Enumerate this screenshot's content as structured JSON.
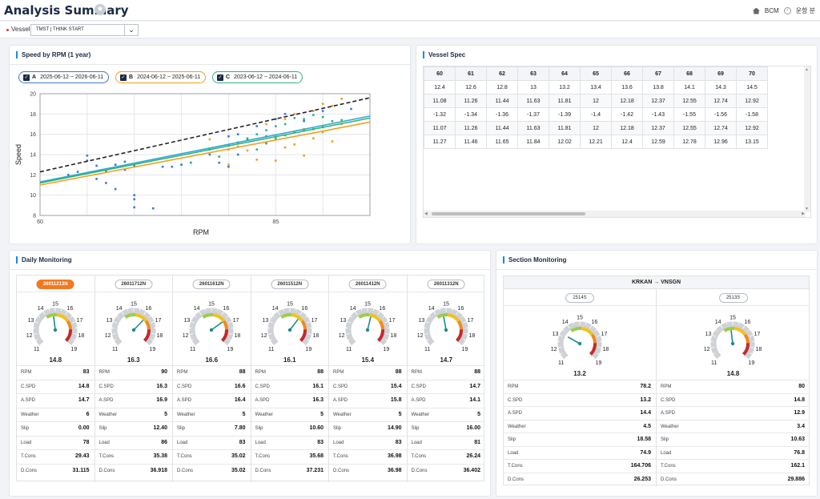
{
  "header": {
    "title": "Analysis Summary",
    "crumbs": [
      "BCM",
      "운항 분"
    ]
  },
  "filter": {
    "label": "Vessel",
    "value": "TMST | THINK START"
  },
  "speed_panel": {
    "title": "Speed by RPM (1 year)",
    "legends": [
      {
        "key": "A",
        "range": "2025-06-12 ~ 2026-06-11",
        "color": "#3a7bd5"
      },
      {
        "key": "B",
        "range": "2024-06-12 ~ 2025-06-11",
        "color": "#f0a020"
      },
      {
        "key": "C",
        "range": "2023-06-12 ~ 2024-06-11",
        "color": "#2db67c"
      }
    ]
  },
  "chart_data": {
    "type": "scatter",
    "xlabel": "RPM",
    "ylabel": "Speed",
    "xlim": [
      60,
      95
    ],
    "ylim": [
      8,
      20
    ],
    "xticks": [
      60,
      85
    ],
    "yticks": [
      8,
      10,
      12,
      14,
      16,
      18,
      20
    ],
    "grid": true,
    "series": [
      {
        "name": "A",
        "color": "#3a7bd5",
        "points": [
          [
            63,
            12
          ],
          [
            64,
            12.3
          ],
          [
            65,
            13.4
          ],
          [
            65,
            13.9
          ],
          [
            66,
            11.6
          ],
          [
            66,
            12.9
          ],
          [
            67,
            12.4
          ],
          [
            67,
            11.2
          ],
          [
            68,
            10.6
          ],
          [
            68,
            13
          ],
          [
            69,
            12.5
          ],
          [
            69,
            13.3
          ],
          [
            70,
            12.9
          ],
          [
            70,
            10
          ],
          [
            70,
            9.6
          ],
          [
            70,
            8.8
          ],
          [
            72,
            8.7
          ],
          [
            73,
            12.8
          ],
          [
            74,
            12.8
          ],
          [
            75,
            13
          ],
          [
            76,
            13.2
          ],
          [
            78,
            14
          ],
          [
            79,
            13.2
          ],
          [
            80,
            15.8
          ],
          [
            80,
            12.8
          ],
          [
            81,
            14
          ],
          [
            81,
            16
          ],
          [
            82,
            15.5
          ],
          [
            83,
            16.8
          ],
          [
            84,
            15.8
          ],
          [
            85,
            17.5
          ],
          [
            86,
            18
          ],
          [
            88,
            17.3
          ],
          [
            90,
            18.3
          ],
          [
            93,
            18.5
          ]
        ]
      },
      {
        "name": "B",
        "color": "#f0a020",
        "points": [
          [
            78,
            15.5
          ],
          [
            80,
            13
          ],
          [
            80,
            14.5
          ],
          [
            81,
            14.8
          ],
          [
            82,
            14.4
          ],
          [
            83,
            16
          ],
          [
            83,
            13.5
          ],
          [
            84,
            17
          ],
          [
            84,
            15.2
          ],
          [
            85,
            13.4
          ],
          [
            85,
            15.8
          ],
          [
            86,
            17.5
          ],
          [
            86,
            14.7
          ],
          [
            87,
            18
          ],
          [
            87,
            15
          ],
          [
            88,
            16.5
          ],
          [
            88,
            13.9
          ],
          [
            89,
            18.3
          ],
          [
            89,
            15.6
          ],
          [
            90,
            19
          ],
          [
            90,
            16.2
          ],
          [
            91,
            18.8
          ],
          [
            91,
            15.3
          ],
          [
            92,
            19.5
          ],
          [
            92,
            17
          ]
        ]
      },
      {
        "name": "C",
        "color": "#2db67c",
        "points": [
          [
            76,
            13.2
          ],
          [
            78,
            14.5
          ],
          [
            79,
            13.8
          ],
          [
            80,
            14.9
          ],
          [
            81,
            15.2
          ],
          [
            82,
            15.6
          ],
          [
            83,
            16
          ],
          [
            83,
            14.5
          ],
          [
            84,
            16.4
          ],
          [
            84,
            15.1
          ],
          [
            85,
            16.8
          ],
          [
            85,
            15.6
          ],
          [
            86,
            17
          ],
          [
            86,
            15.9
          ],
          [
            87,
            17.6
          ],
          [
            87,
            16.2
          ],
          [
            88,
            17.5
          ],
          [
            88,
            16.4
          ],
          [
            89,
            17.9
          ],
          [
            89,
            16.5
          ],
          [
            90,
            17.7
          ],
          [
            90,
            16.7
          ],
          [
            91,
            17.3
          ],
          [
            92,
            17.4
          ]
        ]
      },
      {
        "name": "Reference",
        "color": "#222222",
        "line": [
          [
            60,
            12.3
          ],
          [
            95,
            19.6
          ]
        ],
        "dashed": true
      },
      {
        "name": "Trend A",
        "color": "#2fa8d8",
        "line": [
          [
            60,
            11.3
          ],
          [
            95,
            17.8
          ]
        ]
      },
      {
        "name": "Trend B",
        "color": "#f0a020",
        "line": [
          [
            60,
            11.0
          ],
          [
            95,
            17.2
          ]
        ]
      },
      {
        "name": "Trend C",
        "color": "#2db67c",
        "line": [
          [
            60,
            11.2
          ],
          [
            95,
            17.6
          ]
        ]
      }
    ]
  },
  "vessel_spec": {
    "title": "Vessel Spec",
    "headers": [
      "60",
      "61",
      "62",
      "63",
      "64",
      "65",
      "66",
      "67",
      "68",
      "69",
      "70"
    ],
    "rows": [
      [
        "12.4",
        "12.6",
        "12.8",
        "13",
        "13.2",
        "13.4",
        "13.6",
        "13.8",
        "14.1",
        "14.3",
        "14.5"
      ],
      [
        "11.08",
        "11.26",
        "11.44",
        "11.63",
        "11.81",
        "12",
        "12.18",
        "12.37",
        "12.55",
        "12.74",
        "12.92"
      ],
      [
        "-1.32",
        "-1.34",
        "-1.36",
        "-1.37",
        "-1.39",
        "-1.4",
        "-1.42",
        "-1.43",
        "-1.55",
        "-1.56",
        "-1.58"
      ],
      [
        "11.07",
        "11.26",
        "11.44",
        "11.63",
        "11.81",
        "12",
        "12.18",
        "12.37",
        "12.55",
        "12.74",
        "12.92"
      ],
      [
        "11.27",
        "11.46",
        "11.65",
        "11.84",
        "12.02",
        "12.21",
        "12.4",
        "12.59",
        "12.78",
        "12.96",
        "13.15"
      ]
    ]
  },
  "daily": {
    "title": "Daily Monitoring",
    "gauge_ticks": [
      "11",
      "12",
      "13",
      "14",
      "15",
      "16",
      "17",
      "18",
      "19"
    ],
    "row_labels": [
      "RPM",
      "C.SPD",
      "A.SPD",
      "Weather",
      "Slip",
      "Load",
      "T.Cons",
      "D.Cons"
    ],
    "columns": [
      {
        "badge": "26011213N",
        "active": true,
        "speed": "14.8",
        "gauge_value": 14.8,
        "values": [
          "83",
          "14.8",
          "14.7",
          "6",
          "0.00",
          "78",
          "29.43",
          "31.115"
        ]
      },
      {
        "badge": "26011712N",
        "speed": "16.3",
        "gauge_value": 16.3,
        "values": [
          "90",
          "16.3",
          "16.9",
          "5",
          "12.40",
          "86",
          "35.38",
          "36.918"
        ]
      },
      {
        "badge": "26011612N",
        "speed": "16.6",
        "gauge_value": 16.6,
        "values": [
          "88",
          "16.6",
          "16.4",
          "5",
          "7.80",
          "83",
          "35.02",
          "35.02"
        ]
      },
      {
        "badge": "26011512N",
        "speed": "16.1",
        "gauge_value": 16.1,
        "values": [
          "88",
          "16.1",
          "16.3",
          "5",
          "10.60",
          "83",
          "35.68",
          "37.231"
        ]
      },
      {
        "badge": "26011412N",
        "speed": "15.4",
        "gauge_value": 15.4,
        "values": [
          "88",
          "15.4",
          "15.8",
          "5",
          "14.90",
          "83",
          "36.98",
          "36.98"
        ]
      },
      {
        "badge": "26011312N",
        "speed": "14.7",
        "gauge_value": 14.7,
        "values": [
          "88",
          "14.7",
          "14.1",
          "5",
          "16.00",
          "81",
          "26.24",
          "36.402"
        ]
      }
    ]
  },
  "section": {
    "title": "Section Monitoring",
    "route": "KRKAN → VNSGN",
    "row_labels": [
      "RPM",
      "C.SPD",
      "A.SPD",
      "Weather",
      "Slip",
      "Load",
      "T.Cons",
      "D.Cons"
    ],
    "columns": [
      {
        "badge": "2514S",
        "speed": "13.2",
        "gauge_value": 13.2,
        "values": [
          "78.2",
          "13.2",
          "14.4",
          "4.5",
          "18.58",
          "74.9",
          "164.706",
          "26.253"
        ]
      },
      {
        "badge": "2513S",
        "speed": "14.8",
        "gauge_value": 14.8,
        "values": [
          "80",
          "14.8",
          "12.9",
          "3.4",
          "10.63",
          "76.8",
          "162.1",
          "29.886"
        ]
      }
    ]
  }
}
